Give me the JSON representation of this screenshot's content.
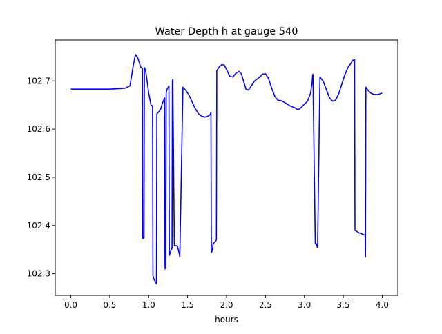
{
  "chart_data": {
    "type": "line",
    "title": "Water Depth h at gauge 540",
    "xlabel": "hours",
    "ylabel": "",
    "xlim": [
      -0.2,
      4.2
    ],
    "ylim": [
      102.255,
      102.785
    ],
    "x_ticks": [
      0.0,
      0.5,
      1.0,
      1.5,
      2.0,
      2.5,
      3.0,
      3.5,
      4.0
    ],
    "x_tick_labels": [
      "0.0",
      "0.5",
      "1.0",
      "1.5",
      "2.0",
      "2.5",
      "3.0",
      "3.5",
      "4.0"
    ],
    "y_ticks": [
      102.3,
      102.4,
      102.5,
      102.6,
      102.7
    ],
    "y_tick_labels": [
      "102.3",
      "102.4",
      "102.5",
      "102.6",
      "102.7"
    ],
    "grid": false,
    "legend": "none",
    "series": [
      {
        "color": "#0000ff",
        "x": [
          0.0,
          0.5,
          0.7,
          0.76,
          0.8,
          0.83,
          0.86,
          0.9,
          0.92,
          0.925,
          0.93,
          0.935,
          0.94,
          0.945,
          0.96,
          0.98,
          1.0,
          1.03,
          1.05,
          1.055,
          1.06,
          1.08,
          1.1,
          1.105,
          1.12,
          1.15,
          1.18,
          1.205,
          1.21,
          1.22,
          1.225,
          1.23,
          1.26,
          1.265,
          1.27,
          1.29,
          1.3,
          1.305,
          1.31,
          1.33,
          1.35,
          1.37,
          1.395,
          1.4,
          1.44,
          1.48,
          1.52,
          1.56,
          1.6,
          1.64,
          1.68,
          1.72,
          1.75,
          1.79,
          1.8,
          1.805,
          1.81,
          1.82,
          1.825,
          1.83,
          1.87,
          1.875,
          1.88,
          1.9,
          1.94,
          1.97,
          2.0,
          2.04,
          2.08,
          2.12,
          2.16,
          2.19,
          2.22,
          2.25,
          2.28,
          2.32,
          2.36,
          2.41,
          2.46,
          2.5,
          2.54,
          2.58,
          2.62,
          2.66,
          2.7,
          2.74,
          2.78,
          2.82,
          2.87,
          2.92,
          2.96,
          3.0,
          3.04,
          3.08,
          3.1,
          3.105,
          3.11,
          3.14,
          3.155,
          3.16,
          3.17,
          3.2,
          3.24,
          3.28,
          3.32,
          3.36,
          3.4,
          3.44,
          3.48,
          3.52,
          3.56,
          3.6,
          3.62,
          3.64,
          3.645,
          3.65,
          3.7,
          3.78,
          3.785,
          3.79,
          3.82,
          3.86,
          3.9,
          3.95,
          4.0
        ],
        "values": [
          102.683,
          102.683,
          102.685,
          102.69,
          102.73,
          102.755,
          102.748,
          102.728,
          102.726,
          102.373,
          102.373,
          102.374,
          102.374,
          102.728,
          102.722,
          102.7,
          102.675,
          102.65,
          102.648,
          102.298,
          102.292,
          102.285,
          102.279,
          102.632,
          102.634,
          102.64,
          102.655,
          102.665,
          102.31,
          102.312,
          102.675,
          102.68,
          102.69,
          102.338,
          102.34,
          102.35,
          102.352,
          102.7,
          102.703,
          102.358,
          102.358,
          102.357,
          102.34,
          102.335,
          102.687,
          102.68,
          102.67,
          102.656,
          102.642,
          102.632,
          102.627,
          102.625,
          102.626,
          102.63,
          102.635,
          102.345,
          102.345,
          102.35,
          102.36,
          102.362,
          102.37,
          102.722,
          102.722,
          102.728,
          102.734,
          102.733,
          102.724,
          102.71,
          102.708,
          102.716,
          102.72,
          102.715,
          102.699,
          102.683,
          102.681,
          102.69,
          102.7,
          102.706,
          102.714,
          102.715,
          102.705,
          102.685,
          102.668,
          102.66,
          102.659,
          102.656,
          102.652,
          102.648,
          102.645,
          102.64,
          102.645,
          102.652,
          102.658,
          102.675,
          102.698,
          102.712,
          102.714,
          102.362,
          102.362,
          102.357,
          102.354,
          102.708,
          102.7,
          102.683,
          102.666,
          102.658,
          102.66,
          102.673,
          102.693,
          102.713,
          102.728,
          102.737,
          102.743,
          102.744,
          102.744,
          102.39,
          102.385,
          102.38,
          102.335,
          102.687,
          102.68,
          102.674,
          102.672,
          102.672,
          102.675
        ]
      }
    ]
  }
}
